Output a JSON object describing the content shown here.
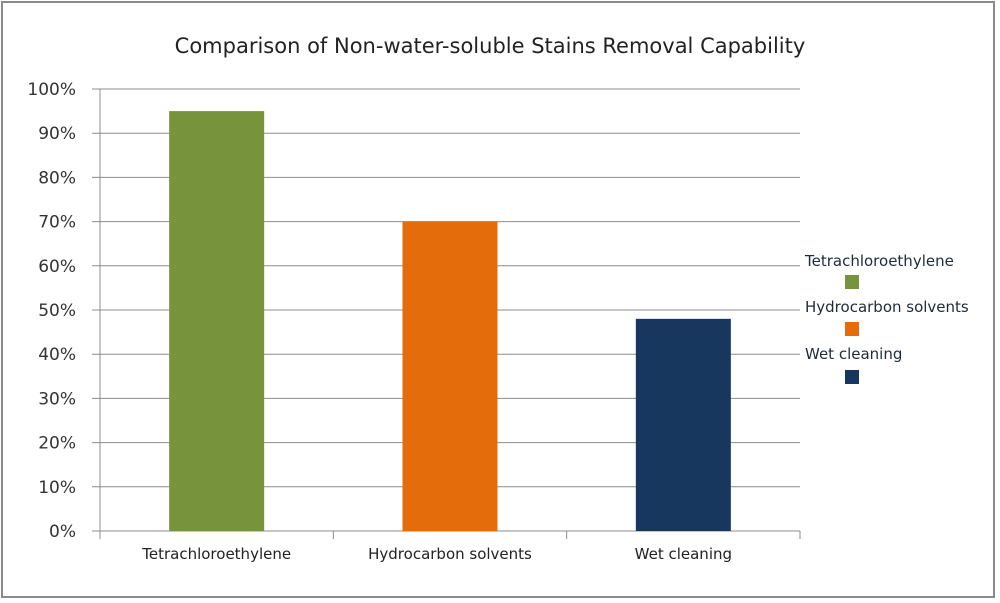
{
  "chart_data": {
    "type": "bar",
    "title": "Comparison of Non-water-soluble Stains Removal Capability",
    "categories": [
      "Tetrachloroethylene",
      "Hydrocarbon solvents",
      "Wet cleaning"
    ],
    "values": [
      95,
      70,
      48
    ],
    "colors": [
      "#77933c",
      "#e46c0a",
      "#17375e"
    ],
    "xlabel": "",
    "ylabel": "",
    "ylim": [
      0,
      100
    ],
    "yticks": [
      "0%",
      "10%",
      "20%",
      "30%",
      "40%",
      "50%",
      "60%",
      "70%",
      "80%",
      "90%",
      "100%"
    ],
    "grid": true,
    "legend": {
      "position": "right",
      "entries": [
        "Tetrachloroethylene",
        "Hydrocarbon solvents",
        "Wet cleaning"
      ]
    }
  }
}
